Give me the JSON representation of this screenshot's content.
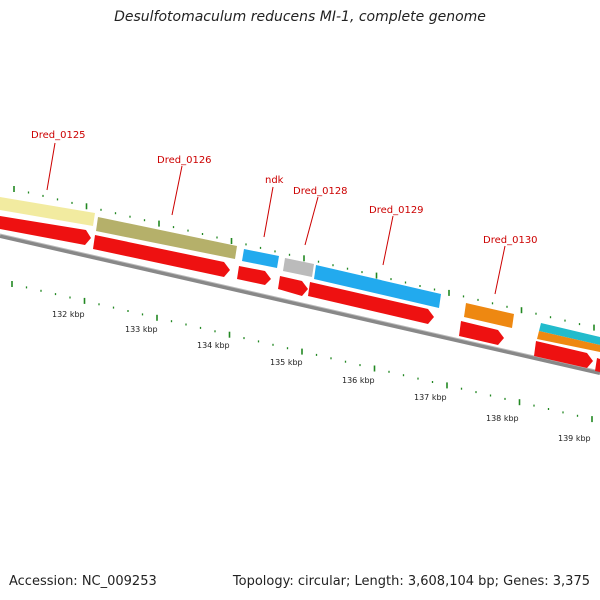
{
  "title": "Desulfotomaculum reducens MI-1, complete genome",
  "footer": {
    "accession": "Accession: NC_009253",
    "stats": "Topology: circular; Length: 3,608,104 bp; Genes: 3,375"
  },
  "genes": [
    {
      "label": "Dred_0125"
    },
    {
      "label": "Dred_0126"
    },
    {
      "label": "ndk"
    },
    {
      "label": "Dred_0128"
    },
    {
      "label": "Dred_0129"
    },
    {
      "label": "Dred_0130"
    }
  ],
  "scale": [
    "132 kbp",
    "133 kbp",
    "134 kbp",
    "135 kbp",
    "136 kbp",
    "137 kbp",
    "138 kbp",
    "139 kbp"
  ],
  "colors": {
    "cds": "#ee1111",
    "backbone": "#888888",
    "tick": "#228822",
    "label": "#cc0000",
    "cog_pale_yellow": "#f2eba0",
    "cog_olive": "#b5b06a",
    "cog_blue": "#22aaee",
    "cog_grey": "#bbbbbb",
    "cog_orange": "#ee8811",
    "cog_cyan": "#22bbcc"
  }
}
